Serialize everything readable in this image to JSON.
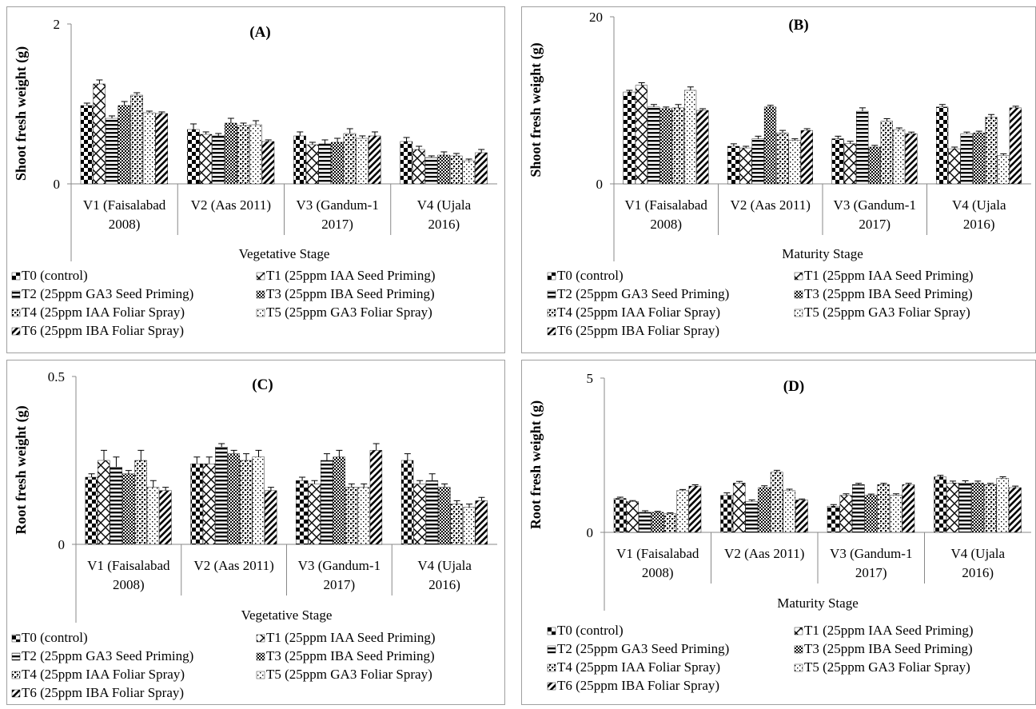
{
  "legend_labels": [
    "T0  (control)",
    "T1 (25ppm IAA Seed Priming)",
    "T2 (25ppm GA3 Seed Priming)",
    "T3 (25ppm IBA Seed Priming)",
    "T4 (25ppm IAA Foliar Spray)",
    "T5 (25ppm GA3 Foliar Spray)",
    "T6 (25ppm IBA Foliar Spray)"
  ],
  "categories": [
    [
      "V1 (Faisalabad",
      "2008)"
    ],
    [
      "V2 (Aas 2011)"
    ],
    [
      "V3 (Gandum-1",
      "2017)"
    ],
    [
      "V4 (Ujala",
      "2016)"
    ]
  ],
  "chart_data": [
    {
      "type": "bar",
      "title": "(A)",
      "ylabel": "Shoot fresh weight (g)",
      "xlabel": "Vegetative Stage",
      "ylim": [
        0,
        2
      ],
      "yticks": [
        "0",
        "2"
      ],
      "legend": "bottom",
      "series": [
        {
          "name": "T0  (control)",
          "values": [
            0.98,
            0.68,
            0.6,
            0.53
          ],
          "errors": [
            0.03,
            0.07,
            0.05,
            0.05
          ]
        },
        {
          "name": "T1 (25ppm IAA Seed Priming)",
          "values": [
            1.25,
            0.62,
            0.49,
            0.43
          ],
          "errors": [
            0.05,
            0.03,
            0.03,
            0.04
          ]
        },
        {
          "name": "T2 (25ppm GA3 Seed Priming)",
          "values": [
            0.82,
            0.6,
            0.5,
            0.33
          ],
          "errors": [
            0.03,
            0.03,
            0.05,
            0.02
          ]
        },
        {
          "name": "T3 (25ppm IBA Seed Priming)",
          "values": [
            0.98,
            0.76,
            0.52,
            0.36
          ],
          "errors": [
            0.05,
            0.06,
            0.05,
            0.04
          ]
        },
        {
          "name": "T4 (25ppm IAA Foliar Spray)",
          "values": [
            1.11,
            0.73,
            0.63,
            0.35
          ],
          "errors": [
            0.03,
            0.03,
            0.06,
            0.03
          ]
        },
        {
          "name": "T5 (25ppm GA3 Foliar Spray)",
          "values": [
            0.89,
            0.74,
            0.57,
            0.29
          ],
          "errors": [
            0.02,
            0.05,
            0.03,
            0.02
          ]
        },
        {
          "name": "T6 (25ppm IBA Foliar Spray)",
          "values": [
            0.88,
            0.53,
            0.6,
            0.39
          ],
          "errors": [
            0.02,
            0.02,
            0.05,
            0.04
          ]
        }
      ]
    },
    {
      "type": "bar",
      "title": "(B)",
      "ylabel": "Shoot fresh weight (g)",
      "xlabel": "Maturity Stage",
      "ylim": [
        0,
        20
      ],
      "yticks": [
        "0",
        "20"
      ],
      "legend": "bottom",
      "series": [
        {
          "name": "T0  (control)",
          "values": [
            11.0,
            4.5,
            5.4,
            9.2
          ],
          "errors": [
            0.2,
            0.3,
            0.3,
            0.3
          ]
        },
        {
          "name": "T1 (25ppm IAA Seed Priming)",
          "values": [
            11.8,
            4.3,
            4.8,
            4.2
          ],
          "errors": [
            0.3,
            0.2,
            0.3,
            0.2
          ]
        },
        {
          "name": "T2 (25ppm GA3 Seed Priming)",
          "values": [
            9.2,
            5.4,
            8.7,
            6.0
          ],
          "errors": [
            0.3,
            0.3,
            0.4,
            0.2
          ]
        },
        {
          "name": "T3 (25ppm IBA Seed Priming)",
          "values": [
            9.0,
            9.2,
            4.4,
            6.1
          ],
          "errors": [
            0.2,
            0.2,
            0.2,
            0.2
          ]
        },
        {
          "name": "T4 (25ppm IAA Foliar Spray)",
          "values": [
            9.1,
            6.1,
            7.5,
            8.0
          ],
          "errors": [
            0.4,
            0.3,
            0.3,
            0.3
          ]
        },
        {
          "name": "T5 (25ppm GA3 Foliar Spray)",
          "values": [
            11.2,
            5.2,
            6.5,
            3.4
          ],
          "errors": [
            0.4,
            0.2,
            0.2,
            0.2
          ]
        },
        {
          "name": "T6 (25ppm IBA Foliar Spray)",
          "values": [
            8.8,
            6.4,
            6.0,
            9.1
          ],
          "errors": [
            0.2,
            0.2,
            0.2,
            0.2
          ]
        }
      ]
    },
    {
      "type": "bar",
      "title": "(C)",
      "ylabel": "Root fresh weight (g)",
      "xlabel": "Vegetative Stage",
      "ylim": [
        0,
        0.5
      ],
      "yticks": [
        "0",
        "0.5"
      ],
      "legend": "bottom",
      "series": [
        {
          "name": "T0  (control)",
          "values": [
            0.2,
            0.24,
            0.19,
            0.25
          ],
          "errors": [
            0.01,
            0.02,
            0.01,
            0.02
          ]
        },
        {
          "name": "T1 (25ppm IAA Seed Priming)",
          "values": [
            0.25,
            0.24,
            0.18,
            0.18
          ],
          "errors": [
            0.03,
            0.02,
            0.01,
            0.01
          ]
        },
        {
          "name": "T2 (25ppm GA3 Seed Priming)",
          "values": [
            0.23,
            0.29,
            0.25,
            0.19
          ],
          "errors": [
            0.03,
            0.01,
            0.02,
            0.02
          ]
        },
        {
          "name": "T3 (25ppm IBA Seed Priming)",
          "values": [
            0.21,
            0.27,
            0.26,
            0.17
          ],
          "errors": [
            0.01,
            0.01,
            0.02,
            0.01
          ]
        },
        {
          "name": "T4 (25ppm IAA Foliar Spray)",
          "values": [
            0.25,
            0.25,
            0.17,
            0.12
          ],
          "errors": [
            0.03,
            0.02,
            0.01,
            0.01
          ]
        },
        {
          "name": "T5 (25ppm GA3 Foliar Spray)",
          "values": [
            0.17,
            0.26,
            0.17,
            0.11
          ],
          "errors": [
            0.02,
            0.02,
            0.01,
            0.01
          ]
        },
        {
          "name": "T6 (25ppm IBA Foliar Spray)",
          "values": [
            0.16,
            0.16,
            0.28,
            0.13
          ],
          "errors": [
            0.01,
            0.01,
            0.02,
            0.01
          ]
        }
      ]
    },
    {
      "type": "bar",
      "title": "(D)",
      "ylabel": "Root fresh weight (g)",
      "xlabel": "Maturity Stage",
      "ylim": [
        0,
        5
      ],
      "yticks": [
        "0",
        "5"
      ],
      "legend": "bottom",
      "series": [
        {
          "name": "T0  (control)",
          "values": [
            1.1,
            1.2,
            0.85,
            1.8
          ],
          "errors": [
            0.04,
            0.08,
            0.05,
            0.05
          ]
        },
        {
          "name": "T1 (25ppm IAA Seed Priming)",
          "values": [
            1.0,
            1.6,
            1.2,
            1.6
          ],
          "errors": [
            0.03,
            0.05,
            0.05,
            0.06
          ]
        },
        {
          "name": "T2 (25ppm GA3 Seed Priming)",
          "values": [
            0.65,
            1.0,
            1.55,
            1.6
          ],
          "errors": [
            0.05,
            0.05,
            0.04,
            0.07
          ]
        },
        {
          "name": "T3 (25ppm IBA Seed Priming)",
          "values": [
            0.65,
            1.45,
            1.2,
            1.6
          ],
          "errors": [
            0.03,
            0.06,
            0.04,
            0.06
          ]
        },
        {
          "name": "T4 (25ppm IAA Foliar Spray)",
          "values": [
            0.6,
            1.95,
            1.55,
            1.55
          ],
          "errors": [
            0.03,
            0.06,
            0.04,
            0.04
          ]
        },
        {
          "name": "T5 (25ppm GA3 Foliar Spray)",
          "values": [
            1.35,
            1.35,
            1.2,
            1.75
          ],
          "errors": [
            0.04,
            0.05,
            0.05,
            0.05
          ]
        },
        {
          "name": "T6 (25ppm IBA Foliar Spray)",
          "values": [
            1.5,
            1.05,
            1.55,
            1.45
          ],
          "errors": [
            0.04,
            0.03,
            0.04,
            0.05
          ]
        }
      ]
    }
  ]
}
